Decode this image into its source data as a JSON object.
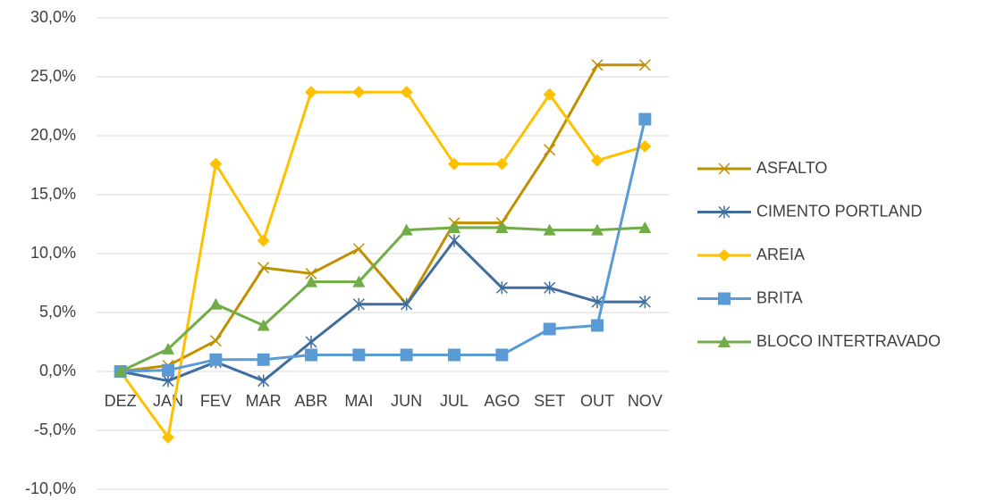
{
  "chart_data": {
    "type": "line",
    "categories": [
      "DEZ",
      "JAN",
      "FEV",
      "MAR",
      "ABR",
      "MAI",
      "JUN",
      "JUL",
      "AGO",
      "SET",
      "OUT",
      "NOV"
    ],
    "series": [
      {
        "name": "ASFALTO",
        "color": "#bf9000",
        "marker": "x",
        "values": [
          0,
          0.5,
          2.6,
          8.8,
          8.3,
          10.4,
          5.7,
          12.6,
          12.6,
          18.8,
          26.0,
          26.0
        ]
      },
      {
        "name": "CIMENTO PORTLAND",
        "color": "#3f6d9e",
        "marker": "asterisk",
        "values": [
          0,
          -0.8,
          0.8,
          -0.8,
          2.5,
          5.7,
          5.7,
          11.1,
          7.1,
          7.1,
          5.9,
          5.9
        ]
      },
      {
        "name": "AREIA",
        "color": "#ffc000",
        "marker": "diamond",
        "values": [
          0,
          -5.6,
          17.6,
          11.1,
          23.7,
          23.7,
          23.7,
          17.6,
          17.6,
          23.5,
          17.9,
          19.1
        ]
      },
      {
        "name": "BRITA",
        "color": "#5b9bd5",
        "marker": "square",
        "values": [
          0,
          0.1,
          1.0,
          1.0,
          1.4,
          1.4,
          1.4,
          1.4,
          1.4,
          3.6,
          3.9,
          21.4
        ]
      },
      {
        "name": "BLOCO INTERTRAVADO",
        "color": "#70ad47",
        "marker": "triangle",
        "values": [
          0,
          1.9,
          5.7,
          3.9,
          7.6,
          7.6,
          12.0,
          12.2,
          12.2,
          12.0,
          12.0,
          12.2
        ]
      }
    ],
    "ylim": [
      -10,
      30
    ],
    "yticks": [
      {
        "value": -10,
        "label": "-10,0%"
      },
      {
        "value": -5,
        "label": "-5,0%"
      },
      {
        "value": 0,
        "label": "0,0%"
      },
      {
        "value": 5,
        "label": "5,0%"
      },
      {
        "value": 10,
        "label": "10,0%"
      },
      {
        "value": 15,
        "label": "15,0%"
      },
      {
        "value": 20,
        "label": "20,0%"
      },
      {
        "value": 25,
        "label": "25,0%"
      },
      {
        "value": 30,
        "label": "30,0%"
      }
    ],
    "grid": true,
    "legend": "right"
  }
}
